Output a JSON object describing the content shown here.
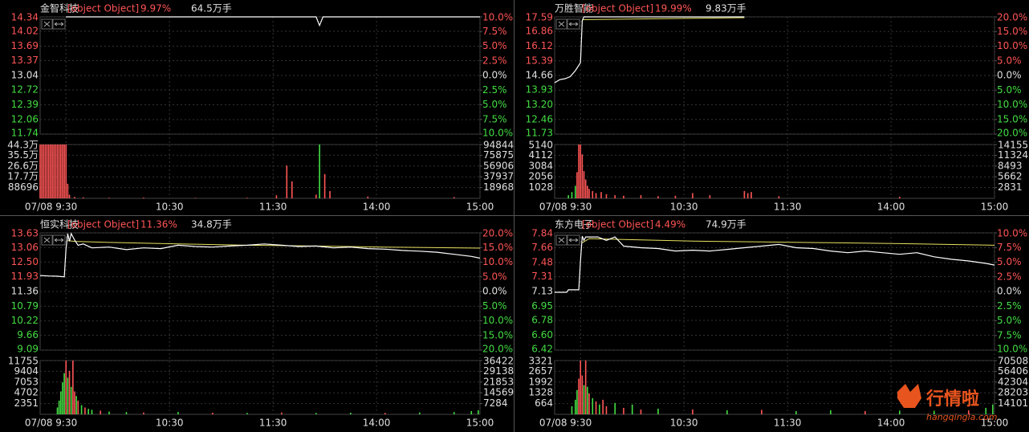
{
  "panels": [
    {
      "type": "line",
      "name": "金智科技",
      "price": {
        "color": "#ffffff",
        "x": [
          15,
          160,
          162,
          164,
          255
        ],
        "values": [
          14.34,
          14.34,
          14.15,
          14.34,
          14.34
        ]
      },
      "change": "9.97%",
      "volume_text": "64.5万手",
      "xlim": [
        0,
        255
      ],
      "xticks": [
        {
          "value": 15,
          "label": "07/08 9:30"
        },
        {
          "value": 75,
          "label": "10:30"
        },
        {
          "value": 135,
          "label": "11:30"
        },
        {
          "value": 195,
          "label": "14:00"
        },
        {
          "value": 255,
          "label": "15:00"
        }
      ],
      "ylim": [
        11.74,
        14.34
      ],
      "yticks": [
        14.34,
        14.02,
        13.69,
        13.37,
        13.04,
        12.72,
        12.39,
        12.06,
        11.74
      ],
      "y2lim": [
        -10,
        10
      ],
      "y2ticks": [
        {
          "value": 10,
          "label": "10.0%"
        },
        {
          "value": 7.5,
          "label": "7.5%"
        },
        {
          "value": 5,
          "label": "5.0%"
        },
        {
          "value": 2.5,
          "label": "2.5%"
        },
        {
          "value": 0,
          "label": "0.0%"
        },
        {
          "value": -2.5,
          "label": "2.5%"
        },
        {
          "value": -5,
          "label": "5.0%"
        },
        {
          "value": -7.5,
          "label": "7.5%"
        },
        {
          "value": -10,
          "label": "10.0%"
        }
      ],
      "volume": {
        "ylim": [
          0,
          443000
        ],
        "yticks": [
          {
            "value": 443000,
            "label": "44.3万"
          },
          {
            "value": 355000,
            "label": "35.5万"
          },
          {
            "value": 266000,
            "label": "26.6万"
          },
          {
            "value": 177000,
            "label": "17.7万"
          },
          88696
        ],
        "y2lim": [
          0,
          94844
        ],
        "y2ticks": [
          94844,
          75875,
          56906,
          37937,
          18968
        ],
        "x": [
          0,
          1,
          2,
          3,
          4,
          5,
          6,
          7,
          8,
          9,
          10,
          11,
          12,
          13,
          14,
          15,
          16,
          17,
          20,
          25,
          40,
          60,
          90,
          120,
          137,
          143,
          146,
          160,
          162,
          165,
          168,
          190,
          240
        ],
        "values": [
          443000,
          443000,
          443000,
          443000,
          443000,
          443000,
          443000,
          443000,
          443000,
          443000,
          443000,
          443000,
          443000,
          443000,
          443000,
          443000,
          120000,
          30000,
          12000,
          8000,
          5000,
          6000,
          4000,
          5000,
          25000,
          270000,
          140000,
          30000,
          443000,
          200000,
          60000,
          15000,
          10000
        ],
        "up": [
          true,
          true,
          true,
          true,
          true,
          true,
          true,
          true,
          true,
          true,
          true,
          true,
          true,
          true,
          true,
          true,
          true,
          true,
          true,
          true,
          true,
          true,
          true,
          true,
          true,
          true,
          true,
          true,
          false,
          true,
          true,
          true,
          true
        ]
      }
    },
    {
      "type": "line",
      "name": "万胜智能",
      "price": {
        "color": "#ffffff",
        "x": [
          0,
          3,
          6,
          9,
          12,
          15,
          16,
          17,
          110
        ],
        "values": [
          14.3,
          14.45,
          14.5,
          14.6,
          14.9,
          15.3,
          17.4,
          17.59,
          17.59
        ]
      },
      "change": "19.99%",
      "volume_text": "9.83万手",
      "xlim": [
        0,
        255
      ],
      "xticks": [
        {
          "value": 15,
          "label": "07/08 9:30"
        },
        {
          "value": 75,
          "label": "10:30"
        },
        {
          "value": 135,
          "label": "11:30"
        },
        {
          "value": 195,
          "label": "14:00"
        },
        {
          "value": 255,
          "label": "15:00"
        }
      ],
      "ylim": [
        11.73,
        17.59
      ],
      "yticks": [
        17.59,
        16.86,
        16.12,
        15.39,
        14.66,
        13.93,
        {
          "value": 13.2,
          "label": "13.20"
        },
        12.46,
        11.73
      ],
      "y2lim": [
        -20,
        20
      ],
      "y2ticks": [
        {
          "value": 20,
          "label": "20.0%"
        },
        {
          "value": 15,
          "label": "15.0%"
        },
        {
          "value": 10,
          "label": "10.0%"
        },
        {
          "value": 5,
          "label": "5.0%"
        },
        {
          "value": 0,
          "label": "0.0%"
        },
        {
          "value": -5,
          "label": "5.0%"
        },
        {
          "value": -10,
          "label": "10.0%"
        },
        {
          "value": -15,
          "label": "15.0%"
        },
        {
          "value": -20,
          "label": "20.0%"
        }
      ],
      "average": {
        "color": "#e8e060",
        "x": [
          16,
          110
        ],
        "values": [
          17.45,
          17.55
        ]
      },
      "volume": {
        "ylim": [
          0,
          5140
        ],
        "yticks": [
          5140,
          4112,
          3084,
          2056,
          1028
        ],
        "y2lim": [
          0,
          14155
        ],
        "y2ticks": [
          14155,
          11324,
          8493,
          5662,
          2831
        ],
        "x": [
          8,
          10,
          12,
          13,
          14,
          15,
          16,
          17,
          18,
          19,
          20,
          22,
          24,
          27,
          30,
          35,
          40,
          50,
          60,
          70,
          80,
          90,
          110,
          112,
          114,
          130,
          200
        ],
        "values": [
          300,
          600,
          1200,
          2500,
          5140,
          5140,
          4200,
          2600,
          1800,
          1200,
          900,
          700,
          500,
          600,
          400,
          300,
          250,
          300,
          200,
          250,
          500,
          300,
          700,
          500,
          600,
          200,
          150
        ],
        "up": [
          false,
          false,
          false,
          true,
          true,
          true,
          true,
          true,
          true,
          true,
          true,
          true,
          true,
          true,
          true,
          true,
          true,
          true,
          true,
          true,
          true,
          true,
          true,
          true,
          true,
          true,
          true
        ]
      }
    },
    {
      "type": "line",
      "name": "恒实科技",
      "price": {
        "color": "#ffffff",
        "x": [
          0,
          5,
          10,
          14,
          15,
          16,
          17,
          18,
          20,
          22,
          25,
          30,
          40,
          50,
          60,
          70,
          80,
          90,
          100,
          110,
          120,
          130,
          140,
          150,
          160,
          170,
          180,
          190,
          200,
          210,
          220,
          230,
          240,
          250,
          255
        ],
        "values": [
          11.98,
          11.96,
          11.95,
          11.93,
          13.0,
          13.6,
          13.3,
          13.6,
          13.35,
          13.15,
          13.2,
          13.05,
          13.08,
          12.98,
          13.05,
          13.02,
          13.15,
          13.1,
          13.08,
          13.12,
          13.15,
          13.2,
          13.15,
          13.1,
          13.12,
          13.05,
          13.08,
          13.02,
          13.0,
          12.95,
          12.92,
          12.88,
          12.8,
          12.72,
          12.65
        ]
      },
      "change": "11.36%",
      "volume_text": "34.8万手",
      "xlim": [
        0,
        255
      ],
      "xticks": [
        {
          "value": 15,
          "label": "07/08 9:30"
        },
        {
          "value": 75,
          "label": "10:30"
        },
        {
          "value": 135,
          "label": "11:30"
        },
        {
          "value": 195,
          "label": "14:00"
        },
        {
          "value": 255,
          "label": "15:00"
        }
      ],
      "ylim": [
        9.09,
        13.63
      ],
      "yticks": [
        13.63,
        13.06,
        {
          "value": 12.5,
          "label": "12.50"
        },
        11.93,
        11.36,
        10.79,
        10.22,
        9.66,
        9.09
      ],
      "y2lim": [
        -20,
        20
      ],
      "y2ticks": [
        {
          "value": 20,
          "label": "20.0%"
        },
        {
          "value": 15,
          "label": "15.0%"
        },
        {
          "value": 10,
          "label": "10.0%"
        },
        {
          "value": 5,
          "label": "5.0%"
        },
        {
          "value": 0,
          "label": "0.0%"
        },
        {
          "value": -5,
          "label": "5.0%"
        },
        {
          "value": -10,
          "label": "10.0%"
        },
        {
          "value": -15,
          "label": "15.0%"
        },
        {
          "value": -20,
          "label": "20.0%"
        }
      ],
      "average": {
        "color": "#e8e060",
        "x": [
          16,
          20,
          40,
          80,
          120,
          160,
          200,
          255
        ],
        "values": [
          13.33,
          13.3,
          13.26,
          13.2,
          13.15,
          13.12,
          13.08,
          13.04
        ]
      },
      "volume": {
        "ylim": [
          0,
          11755
        ],
        "yticks": [
          11755,
          9404,
          7053,
          4702,
          2351
        ],
        "y2lim": [
          0,
          36422
        ],
        "y2ticks": [
          36422,
          29138,
          21853,
          14569,
          7284
        ],
        "x": [
          10,
          11,
          12,
          13,
          14,
          15,
          16,
          17,
          18,
          19,
          20,
          21,
          22,
          24,
          26,
          28,
          30,
          35,
          40,
          50,
          60,
          80,
          100,
          120,
          140,
          160,
          180,
          200,
          220,
          240,
          250,
          254
        ],
        "values": [
          1500,
          3000,
          5000,
          7000,
          9000,
          11755,
          8000,
          9500,
          6000,
          11755,
          5000,
          4000,
          3000,
          2000,
          1500,
          1200,
          1000,
          800,
          600,
          500,
          400,
          500,
          350,
          300,
          400,
          300,
          350,
          300,
          400,
          500,
          700,
          900
        ],
        "up": [
          false,
          false,
          false,
          false,
          false,
          true,
          false,
          true,
          false,
          true,
          true,
          false,
          true,
          false,
          true,
          false,
          false,
          true,
          false,
          false,
          true,
          false,
          true,
          false,
          true,
          false,
          false,
          true,
          false,
          false,
          false,
          false
        ]
      }
    },
    {
      "type": "line",
      "name": "东方电子",
      "price": {
        "color": "#ffffff",
        "x": [
          0,
          7,
          8,
          14,
          15,
          16,
          17,
          18,
          20,
          25,
          30,
          35,
          40,
          50,
          60,
          70,
          80,
          90,
          100,
          110,
          120,
          130,
          140,
          150,
          160,
          170,
          180,
          190,
          200,
          210,
          220,
          230,
          240,
          250,
          255
        ],
        "values": [
          7.12,
          7.12,
          7.15,
          7.15,
          7.5,
          7.8,
          7.75,
          7.79,
          7.79,
          7.79,
          7.75,
          7.79,
          7.68,
          7.66,
          7.65,
          7.62,
          7.63,
          7.62,
          7.64,
          7.66,
          7.68,
          7.7,
          7.66,
          7.65,
          7.62,
          7.6,
          7.62,
          7.6,
          7.58,
          7.6,
          7.55,
          7.52,
          7.5,
          7.47,
          7.45
        ]
      },
      "change": "4.49%",
      "volume_text": "74.9万手",
      "xlim": [
        0,
        255
      ],
      "xticks": [
        {
          "value": 15,
          "label": "07/08 9:30"
        },
        {
          "value": 75,
          "label": "10:30"
        },
        {
          "value": 135,
          "label": "11:30"
        },
        {
          "value": 195,
          "label": "14:00"
        },
        {
          "value": 255,
          "label": "15:00"
        }
      ],
      "ylim": [
        6.42,
        7.84
      ],
      "yticks": [
        7.84,
        7.66,
        7.48,
        7.31,
        7.13,
        6.95,
        6.78,
        {
          "value": 6.6,
          "label": "6.60"
        },
        6.42
      ],
      "y2lim": [
        -10,
        10
      ],
      "y2ticks": [
        {
          "value": 10,
          "label": "10.0%"
        },
        {
          "value": 7.5,
          "label": "7.5%"
        },
        {
          "value": 5,
          "label": "5.0%"
        },
        {
          "value": 2.5,
          "label": "2.5%"
        },
        {
          "value": 0,
          "label": "0.0%"
        },
        {
          "value": -2.5,
          "label": "2.5%"
        },
        {
          "value": -5,
          "label": "5.0%"
        },
        {
          "value": -7.5,
          "label": "7.5%"
        },
        {
          "value": -10,
          "label": "10.0%"
        }
      ],
      "average": {
        "color": "#e8e060",
        "x": [
          16,
          20,
          40,
          80,
          120,
          160,
          200,
          255
        ],
        "values": [
          7.72,
          7.77,
          7.76,
          7.74,
          7.73,
          7.72,
          7.71,
          7.69
        ]
      },
      "volume": {
        "ylim": [
          0,
          3321
        ],
        "yticks": [
          3321,
          2657,
          1992,
          1328,
          664
        ],
        "y2lim": [
          0,
          70508
        ],
        "y2ticks": [
          70508,
          56406,
          42304,
          28203,
          14101
        ],
        "x": [
          10,
          12,
          13,
          14,
          15,
          16,
          17,
          18,
          19,
          20,
          22,
          24,
          26,
          28,
          30,
          35,
          40,
          45,
          50,
          60,
          80,
          100,
          120,
          140,
          160,
          180,
          200,
          220,
          240,
          250,
          254
        ],
        "values": [
          500,
          900,
          1500,
          2200,
          3321,
          2400,
          1800,
          3321,
          1700,
          1300,
          1000,
          800,
          600,
          900,
          500,
          700,
          400,
          600,
          300,
          350,
          300,
          250,
          280,
          200,
          250,
          200,
          230,
          220,
          250,
          400,
          600
        ],
        "up": [
          false,
          false,
          false,
          true,
          true,
          true,
          false,
          true,
          false,
          true,
          false,
          true,
          false,
          true,
          true,
          false,
          true,
          false,
          true,
          false,
          true,
          false,
          true,
          false,
          false,
          true,
          false,
          false,
          true,
          false,
          false
        ]
      }
    }
  ],
  "watermark": {
    "title": "行情啦",
    "url": "hangqingla.com"
  }
}
